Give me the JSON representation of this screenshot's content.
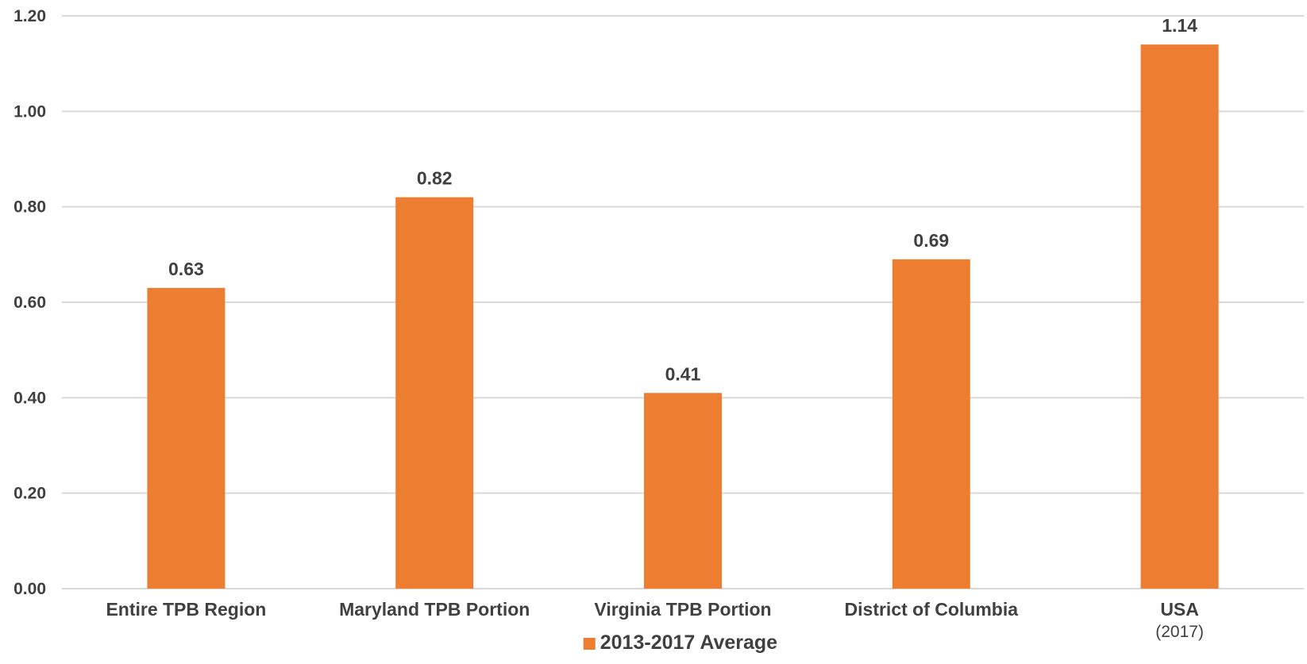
{
  "chart_data": {
    "type": "bar",
    "categories": [
      {
        "label": "Entire TPB Region",
        "sublabel": ""
      },
      {
        "label": "Maryland TPB Portion",
        "sublabel": ""
      },
      {
        "label": "Virginia TPB Portion",
        "sublabel": ""
      },
      {
        "label": "District of Columbia",
        "sublabel": ""
      },
      {
        "label": "USA",
        "sublabel": "(2017)"
      }
    ],
    "series": [
      {
        "name": "2013-2017 Average",
        "values": [
          0.63,
          0.82,
          0.41,
          0.69,
          1.14
        ],
        "value_labels": [
          "0.63",
          "0.82",
          "0.41",
          "0.69",
          "1.14"
        ]
      }
    ],
    "y_ticks": [
      "0.00",
      "0.20",
      "0.40",
      "0.60",
      "0.80",
      "1.00",
      "1.20"
    ],
    "ylim": [
      0,
      1.2
    ],
    "grid": true,
    "legend_position": "bottom",
    "colors": {
      "bar": "#ED7D31",
      "grid": "#D9D9D9",
      "text": "#404040"
    }
  }
}
